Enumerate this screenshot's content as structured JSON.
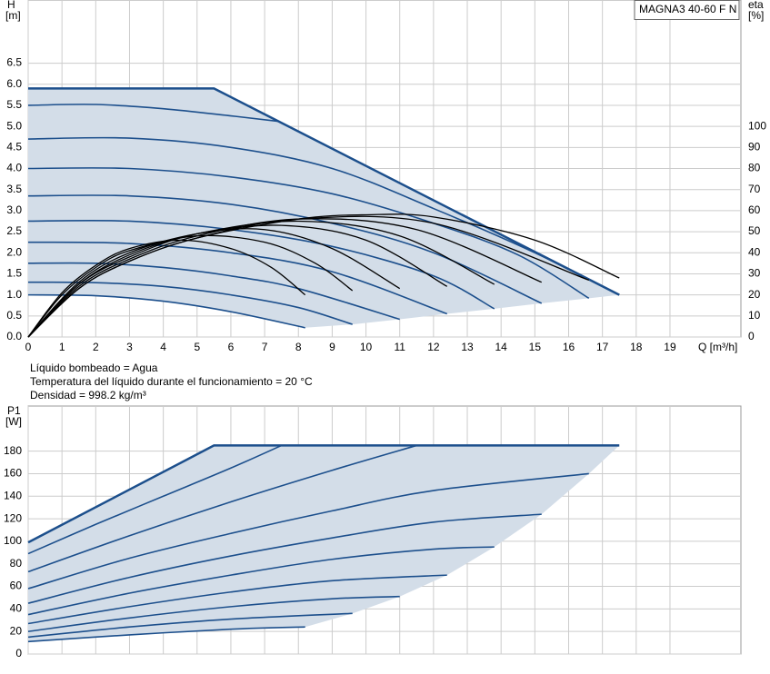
{
  "notes": [
    "Líquido bombeado = Agua",
    "Temperatura del líquido durante el funcionamiento = 20 °C",
    "Densidad = 998.2 kg/m³"
  ],
  "chart_data": [
    {
      "type": "line",
      "annotation": "MAGNA3 40-60 F N",
      "ylabel": "H",
      "yunit": "[m]",
      "y2label": "eta",
      "y2unit": "[%]",
      "xlabel": "Q [m³/h]",
      "xlim": [
        0,
        21.1
      ],
      "xticks": [
        0,
        1,
        2,
        3,
        4,
        5,
        6,
        7,
        8,
        9,
        10,
        11,
        12,
        13,
        14,
        15,
        16,
        17,
        18,
        19
      ],
      "ylim": [
        0,
        8
      ],
      "yticks": [
        {
          "value": 0,
          "label": "0.0"
        },
        0.5,
        {
          "value": 1,
          "label": "1.0"
        },
        1.5,
        {
          "value": 2,
          "label": "2.0"
        },
        2.5,
        {
          "value": 3,
          "label": "3.0"
        },
        3.5,
        {
          "value": 4,
          "label": "4.0"
        },
        4.5,
        {
          "value": 5,
          "label": "5.0"
        },
        5.5,
        {
          "value": 6,
          "label": "6.0"
        },
        6.5
      ],
      "y2lim": [
        0,
        160
      ],
      "y2ticks": [
        0,
        10,
        20,
        30,
        40,
        50,
        60,
        70,
        80,
        90,
        100
      ],
      "grid": true,
      "fill_color": "#d3dde8",
      "series": [
        {
          "color": "#1c4f8c",
          "x": [
            0,
            5.5,
            17.5
          ],
          "values": [
            5.9,
            5.9,
            1.0
          ]
        },
        {
          "color": "#d3dde8",
          "x": [
            8.2,
            9.6,
            11,
            12.4,
            13.8,
            15.2,
            16.6,
            17.5
          ],
          "values": [
            0.22,
            0.3,
            0.42,
            0.55,
            0.67,
            0.8,
            0.92,
            1.0
          ]
        },
        {
          "color": "#1c4f8c",
          "x": [
            0,
            2,
            4,
            6,
            8.2
          ],
          "values": [
            1.0,
            0.98,
            0.85,
            0.6,
            0.22
          ]
        },
        {
          "color": "#1c4f8c",
          "x": [
            0,
            2,
            4,
            6,
            8,
            9.6
          ],
          "values": [
            1.3,
            1.29,
            1.2,
            1.0,
            0.7,
            0.3
          ]
        },
        {
          "color": "#1c4f8c",
          "x": [
            0,
            2,
            4,
            6,
            8,
            11
          ],
          "values": [
            1.75,
            1.75,
            1.65,
            1.45,
            1.15,
            0.42
          ]
        },
        {
          "color": "#1c4f8c",
          "x": [
            0,
            3,
            6,
            9,
            12.4
          ],
          "values": [
            2.25,
            2.22,
            2.0,
            1.55,
            0.55
          ]
        },
        {
          "color": "#1c4f8c",
          "x": [
            0,
            3,
            6,
            9,
            12,
            13.8
          ],
          "values": [
            2.75,
            2.75,
            2.55,
            2.15,
            1.45,
            0.67
          ]
        },
        {
          "color": "#1c4f8c",
          "x": [
            0,
            3,
            6,
            9,
            12,
            15.2
          ],
          "values": [
            3.35,
            3.35,
            3.15,
            2.7,
            2.0,
            0.8
          ]
        },
        {
          "color": "#1c4f8c",
          "x": [
            0,
            3,
            6,
            9,
            12,
            14.5,
            16.6
          ],
          "values": [
            4.0,
            4.0,
            3.8,
            3.4,
            2.7,
            1.95,
            0.92
          ]
        },
        {
          "color": "#1c4f8c",
          "x": [
            0,
            3,
            6,
            9,
            12,
            15,
            17.5
          ],
          "values": [
            4.7,
            4.72,
            4.5,
            4.0,
            3.05,
            2.0,
            1.0
          ]
        },
        {
          "color": "#1c4f8c",
          "x": [
            0,
            2,
            4,
            6,
            7.4
          ],
          "values": [
            5.5,
            5.52,
            5.42,
            5.25,
            5.12
          ]
        },
        {
          "color": "#000000",
          "axis": "y2",
          "x": [
            0,
            1,
            2,
            3,
            4.5,
            6,
            7.2,
            8.2
          ],
          "values": [
            0,
            21,
            34,
            42,
            46,
            42,
            33,
            20
          ]
        },
        {
          "color": "#000000",
          "axis": "y2",
          "x": [
            0,
            1,
            2,
            3,
            5,
            7,
            8.5,
            9.6
          ],
          "values": [
            0,
            20,
            33,
            41,
            48,
            45,
            35,
            22
          ]
        },
        {
          "color": "#000000",
          "axis": "y2",
          "x": [
            0,
            1.5,
            3,
            5,
            7,
            9,
            11
          ],
          "values": [
            0,
            26,
            40,
            49,
            51,
            42,
            23
          ]
        },
        {
          "color": "#000000",
          "axis": "y2",
          "x": [
            0,
            1.5,
            3,
            5,
            7.5,
            10,
            12.4
          ],
          "values": [
            0,
            25,
            39,
            49,
            53,
            46,
            24
          ]
        },
        {
          "color": "#000000",
          "axis": "y2",
          "x": [
            0,
            1.5,
            3,
            5,
            8,
            11,
            13.8
          ],
          "values": [
            0,
            25,
            38,
            49,
            55,
            48,
            25
          ]
        },
        {
          "color": "#000000",
          "axis": "y2",
          "x": [
            0,
            1.5,
            3,
            5,
            8,
            11.5,
            15.2
          ],
          "values": [
            0,
            24,
            37,
            48,
            56,
            51,
            26
          ]
        },
        {
          "color": "#000000",
          "axis": "y2",
          "x": [
            0,
            1.5,
            3,
            5,
            8,
            12,
            16.6
          ],
          "values": [
            0,
            23,
            36,
            47,
            56,
            54,
            27
          ]
        },
        {
          "color": "#000000",
          "axis": "y2",
          "x": [
            0,
            1.5,
            3,
            5,
            8,
            10,
            12,
            15,
            17.5
          ],
          "values": [
            0,
            23,
            36,
            47,
            56,
            58,
            57,
            46,
            28
          ]
        }
      ]
    },
    {
      "type": "line",
      "ylabel": "P1",
      "yunit": "[W]",
      "xlim": [
        0,
        21.1
      ],
      "ylim": [
        0,
        220
      ],
      "yticks": [
        0,
        20,
        40,
        60,
        80,
        100,
        120,
        140,
        160,
        180
      ],
      "grid": true,
      "fill_color": "#d3dde8",
      "series": [
        {
          "color": "#1c4f8c",
          "x": [
            0,
            5.5,
            17.5
          ],
          "values": [
            99,
            185,
            185
          ]
        },
        {
          "color": "#d3dde8",
          "x": [
            8.2,
            9.6,
            11,
            12.4,
            13.8,
            15.2,
            16.6,
            17.5
          ],
          "values": [
            24,
            36,
            51,
            70,
            95,
            124,
            160,
            185
          ]
        },
        {
          "color": "#1c4f8c",
          "x": [
            0,
            3,
            6,
            8.2
          ],
          "values": [
            11,
            17,
            22,
            24
          ]
        },
        {
          "color": "#1c4f8c",
          "x": [
            0,
            3,
            6,
            9.6
          ],
          "values": [
            15,
            24,
            31,
            36
          ]
        },
        {
          "color": "#1c4f8c",
          "x": [
            0,
            3,
            6,
            9,
            11
          ],
          "values": [
            20,
            32,
            42,
            49,
            51
          ]
        },
        {
          "color": "#1c4f8c",
          "x": [
            0,
            3,
            6,
            9,
            12.4
          ],
          "values": [
            27,
            42,
            55,
            65,
            70
          ]
        },
        {
          "color": "#1c4f8c",
          "x": [
            0,
            3,
            6,
            9,
            12,
            13.8
          ],
          "values": [
            35,
            54,
            70,
            84,
            93,
            95
          ]
        },
        {
          "color": "#1c4f8c",
          "x": [
            0,
            3,
            6,
            9,
            12,
            15.2
          ],
          "values": [
            45,
            68,
            87,
            103,
            117,
            124
          ]
        },
        {
          "color": "#1c4f8c",
          "x": [
            0,
            3,
            6,
            9,
            12,
            16.6
          ],
          "values": [
            58,
            85,
            107,
            127,
            145,
            160
          ]
        },
        {
          "color": "#1c4f8c",
          "x": [
            0,
            3,
            6,
            9,
            11.5
          ],
          "values": [
            73,
            105,
            135,
            163,
            185
          ]
        },
        {
          "color": "#1c4f8c",
          "x": [
            0,
            2,
            4,
            6,
            7.5
          ],
          "values": [
            89,
            115,
            140,
            165,
            185
          ]
        }
      ]
    }
  ]
}
